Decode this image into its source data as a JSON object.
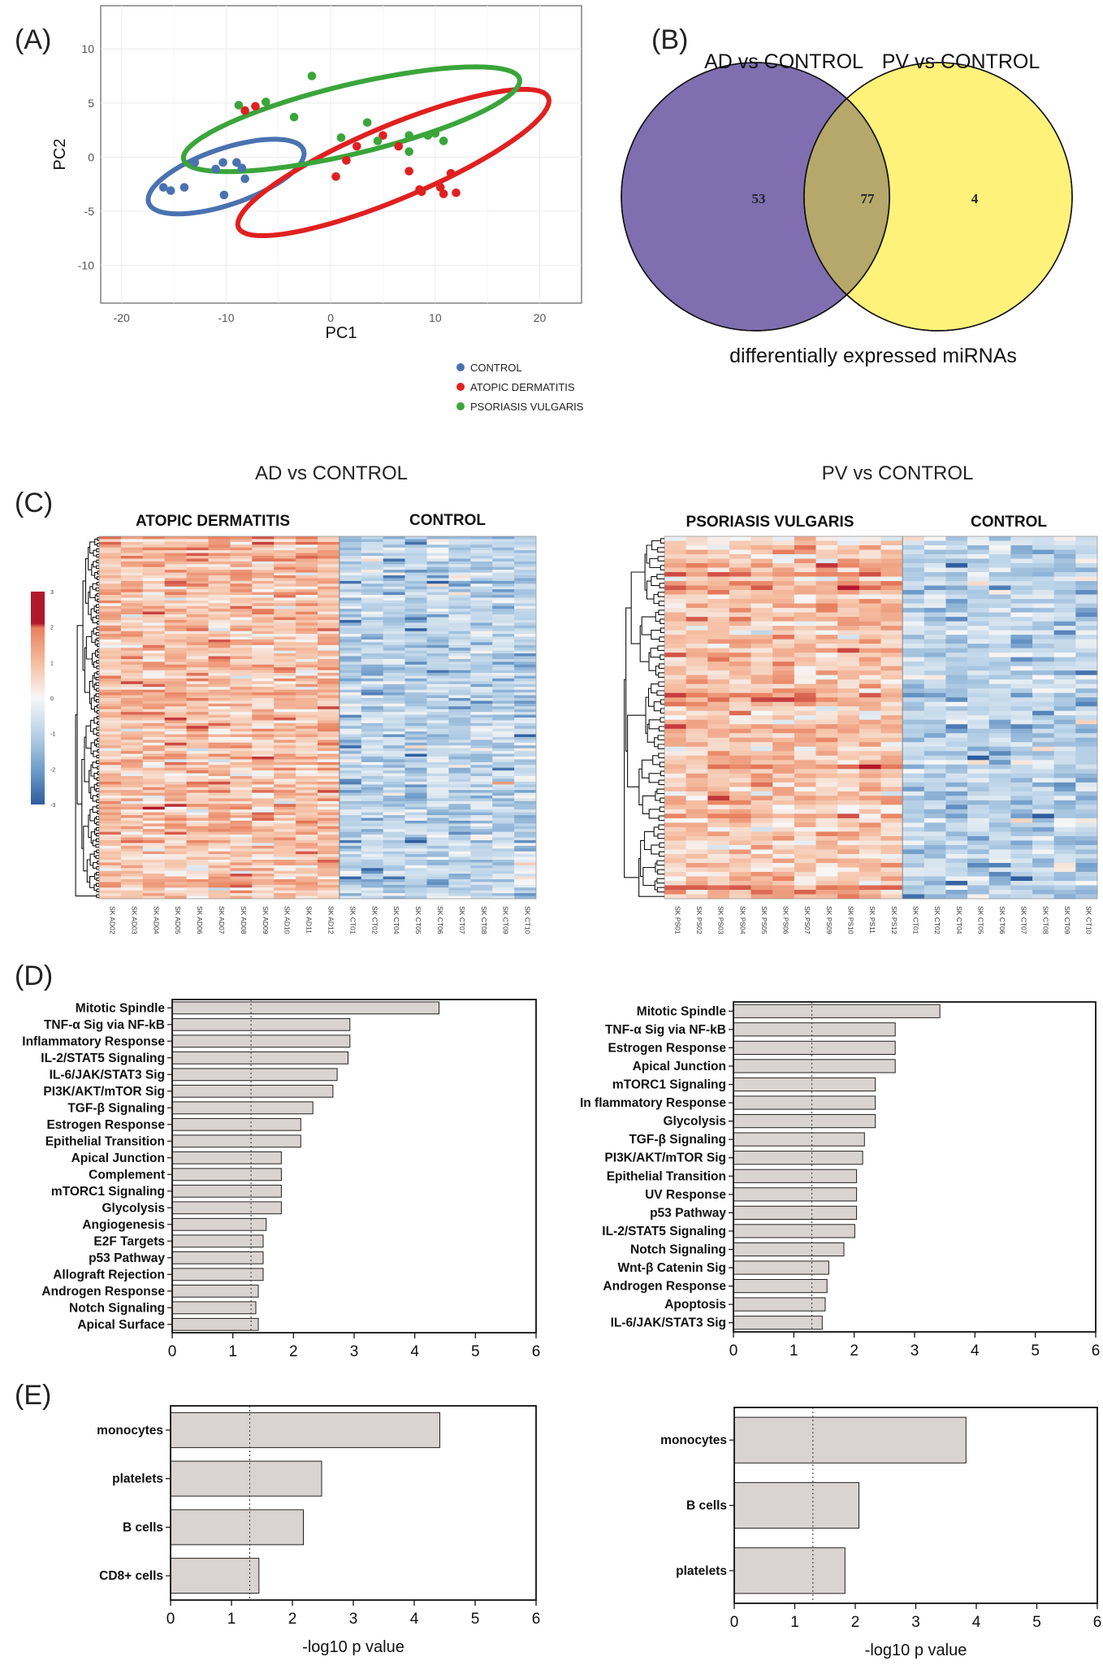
{
  "panels": {
    "A": "(A)",
    "B": "(B)",
    "C": "(C)",
    "D": "(D)",
    "E": "(E)"
  },
  "colors": {
    "control": "#4a72b0",
    "ad": "#e02020",
    "pv": "#3aa53a",
    "venn_ad": "#7f6fb0",
    "venn_pv": "#fff27a",
    "venn_overlap": "#b5a86a",
    "bar_fill": "#d9d4d1",
    "heat_high": "#b2182b",
    "heat_mid": "#f7f7f7",
    "heat_low": "#2f5d9e"
  },
  "chart_data": [
    {
      "id": "A",
      "type": "scatter",
      "title": "",
      "xlabel": "PC1",
      "ylabel": "PC2",
      "xlim": [
        -22,
        24
      ],
      "ylim": [
        -13.5,
        14
      ],
      "xticks": [
        "-20",
        "-10",
        "0",
        "10",
        "20"
      ],
      "xtick_values": [
        -20,
        -10,
        0,
        10,
        20
      ],
      "yticks": [
        "10",
        "5",
        "0",
        "-5",
        "-10"
      ],
      "ytick_values": [
        10,
        5,
        0,
        -5,
        -10
      ],
      "grid": true,
      "legend_position": "bottom-right",
      "series": [
        {
          "name": "CONTROL",
          "color_key": "control",
          "points": [
            [
              -16,
              -2.8
            ],
            [
              -15.3,
              -3.1
            ],
            [
              -14,
              -2.8
            ],
            [
              -13,
              -0.5
            ],
            [
              -11,
              -1.1
            ],
            [
              -10.3,
              -0.5
            ],
            [
              -10.2,
              -3.5
            ],
            [
              -9,
              -0.5
            ],
            [
              -8.5,
              -1
            ],
            [
              -8.2,
              -2
            ]
          ],
          "ellipse": {
            "cx": -10,
            "cy": -1.8,
            "rx": 7.8,
            "ry": 2.6,
            "angle_deg": 18
          }
        },
        {
          "name": "ATOPIC DERMATITIS",
          "color_key": "ad",
          "points": [
            [
              -8.2,
              4.3
            ],
            [
              -7.2,
              4.7
            ],
            [
              0.5,
              -1.8
            ],
            [
              1.5,
              -0.3
            ],
            [
              2.5,
              1
            ],
            [
              5,
              2
            ],
            [
              6.5,
              1
            ],
            [
              7.5,
              -1.3
            ],
            [
              8.5,
              -3
            ],
            [
              8.7,
              -3.2
            ],
            [
              10.5,
              -2.8
            ],
            [
              10.8,
              -3.4
            ],
            [
              11.5,
              -1.5
            ],
            [
              12,
              -3.3
            ]
          ],
          "ellipse": {
            "cx": 6,
            "cy": -0.5,
            "rx": 16,
            "ry": 3.4,
            "angle_deg": 22
          }
        },
        {
          "name": "PSORIASIS VULGARIS",
          "color_key": "pv",
          "points": [
            [
              -1.8,
              7.5
            ],
            [
              -8.8,
              4.8
            ],
            [
              -6.2,
              5.1
            ],
            [
              -3.5,
              3.7
            ],
            [
              1,
              1.8
            ],
            [
              3.5,
              3.2
            ],
            [
              7.5,
              2
            ],
            [
              7.5,
              0.5
            ],
            [
              9.3,
              2
            ],
            [
              10,
              2.2
            ],
            [
              10.8,
              1.5
            ],
            [
              4.5,
              1.5
            ]
          ],
          "ellipse": {
            "cx": 2,
            "cy": 3.5,
            "rx": 16.5,
            "ry": 3.2,
            "angle_deg": 13
          }
        }
      ]
    },
    {
      "id": "B",
      "type": "venn",
      "sets": [
        "AD vs CONTROL",
        "PV vs CONTROL"
      ],
      "only_a": "53",
      "both": "77",
      "only_b": "4",
      "caption": "differentially expressed miRNAs"
    },
    {
      "id": "C",
      "type": "heatmap",
      "colorbar_ticks": [
        "3",
        "2",
        "1",
        "0",
        "-1",
        "-2",
        "-3"
      ],
      "colorbar_values": [
        3,
        2,
        1,
        0,
        -1,
        -2,
        -3
      ],
      "maps": [
        {
          "title": "AD vs CONTROL",
          "group_a": "ATOPIC DERMATITIS",
          "group_b": "CONTROL",
          "rows": 130,
          "samples_a": [
            "SK AD02",
            "SK AD03",
            "SK AD04",
            "SK AD05",
            "SK AD06",
            "SK AD07",
            "SK AD08",
            "SK AD09",
            "SK AD10",
            "SK AD11",
            "SK AD12"
          ],
          "samples_b": [
            "SK CT01",
            "SK CT02",
            "SK CT04",
            "SK CT05",
            "SK CT06",
            "SK CT07",
            "SK CT08",
            "SK CT09",
            "SK CT10"
          ],
          "seed": 7
        },
        {
          "title": "PV vs CONTROL",
          "group_a": "PSORIASIS VULGARIS",
          "group_b": "CONTROL",
          "rows": 81,
          "samples_a": [
            "SK PS01",
            "SK PS02",
            "SK PS03",
            "SK PS04",
            "SK PS05",
            "SK PS06",
            "SK PS07",
            "SK PS09",
            "SK PS10",
            "SK PS11",
            "SK PS12"
          ],
          "samples_b": [
            "SK CT01",
            "SK CT02",
            "SK CT04",
            "SK CT05",
            "SK CT06",
            "SK CT07",
            "SK CT08",
            "SK CT09",
            "SK CT10"
          ],
          "seed": 19
        }
      ]
    },
    {
      "id": "D-left",
      "type": "bar",
      "orientation": "horizontal",
      "xlabel": "",
      "xlim": [
        0,
        6
      ],
      "xticks": [
        "0",
        "1",
        "2",
        "3",
        "4",
        "5",
        "6"
      ],
      "threshold": 1.3,
      "categories": [
        "Mitotic Spindle",
        "TNF-α Sig  via NF-kB",
        "Inflammatory Response",
        "IL-2/STAT5 Signaling",
        "IL-6/JAK/STAT3 Sig",
        "PI3K/AKT/mTOR Sig",
        "TGF-β Signaling",
        "Estrogen Response",
        "Epithelial Transition",
        "Apical Junction",
        "Complement",
        "mTORC1 Signaling",
        "Glycolysis",
        "Angiogenesis",
        "E2F Targets",
        "p53 Pathway",
        "Allograft Rejection",
        "Androgen Response",
        "Notch Signaling",
        "Apical Surface"
      ],
      "values": [
        4.4,
        2.93,
        2.93,
        2.9,
        2.72,
        2.65,
        2.32,
        2.12,
        2.12,
        1.8,
        1.8,
        1.8,
        1.8,
        1.55,
        1.5,
        1.5,
        1.5,
        1.42,
        1.38,
        1.42
      ]
    },
    {
      "id": "D-right",
      "type": "bar",
      "orientation": "horizontal",
      "xlabel": "",
      "xlim": [
        0,
        6
      ],
      "xticks": [
        "0",
        "1",
        "2",
        "3",
        "4",
        "5",
        "6"
      ],
      "threshold": 1.3,
      "categories": [
        "Mitotic Spindle",
        "TNF-α Sig  via NF-kB",
        "Estrogen Response",
        "Apical Junction",
        "mTORC1 Signaling",
        "In  flammatory Response",
        "Glycolysis",
        "TGF-β Signaling",
        "PI3K/AKT/mTOR Sig",
        "Epithelial Transition",
        "UV Response",
        "p53 Pathway",
        "IL-2/STAT5 Signaling",
        "Notch Signaling",
        "Wnt-β Catenin Sig",
        "Androgen Response",
        "Apoptosis",
        "IL-6/JAK/STAT3 Sig"
      ],
      "values": [
        3.42,
        2.68,
        2.68,
        2.68,
        2.35,
        2.35,
        2.35,
        2.17,
        2.14,
        2.04,
        2.04,
        2.04,
        2.01,
        1.83,
        1.58,
        1.55,
        1.52,
        1.47
      ]
    },
    {
      "id": "E-left",
      "type": "bar",
      "orientation": "horizontal",
      "xlabel": "-log10 p value",
      "xlim": [
        0,
        6
      ],
      "xticks": [
        "0",
        "1",
        "2",
        "3",
        "4",
        "5",
        "6"
      ],
      "threshold": 1.3,
      "categories": [
        "monocytes",
        "platelets",
        "B cells",
        "CD8+ cells"
      ],
      "values": [
        4.42,
        2.48,
        2.18,
        1.45
      ]
    },
    {
      "id": "E-right",
      "type": "bar",
      "orientation": "horizontal",
      "xlabel": "-log10 p value",
      "xlim": [
        0,
        6
      ],
      "xticks": [
        "0",
        "1",
        "2",
        "3",
        "4",
        "5",
        "6"
      ],
      "threshold": 1.3,
      "categories": [
        "monocytes",
        "B cells",
        "platelets"
      ],
      "values": [
        3.83,
        2.06,
        1.83
      ]
    }
  ]
}
